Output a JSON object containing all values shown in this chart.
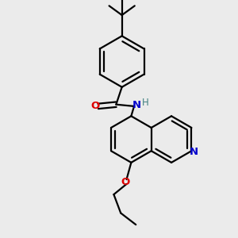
{
  "background_color": "#ebebeb",
  "bond_color": "#000000",
  "N_color": "#0000cc",
  "O_color": "#dd0000",
  "H_color": "#408080",
  "line_width": 1.6,
  "figsize": [
    3.0,
    3.0
  ],
  "dpi": 100,
  "xlim": [
    -0.7,
    0.85
  ],
  "ylim": [
    -1.0,
    1.05
  ]
}
